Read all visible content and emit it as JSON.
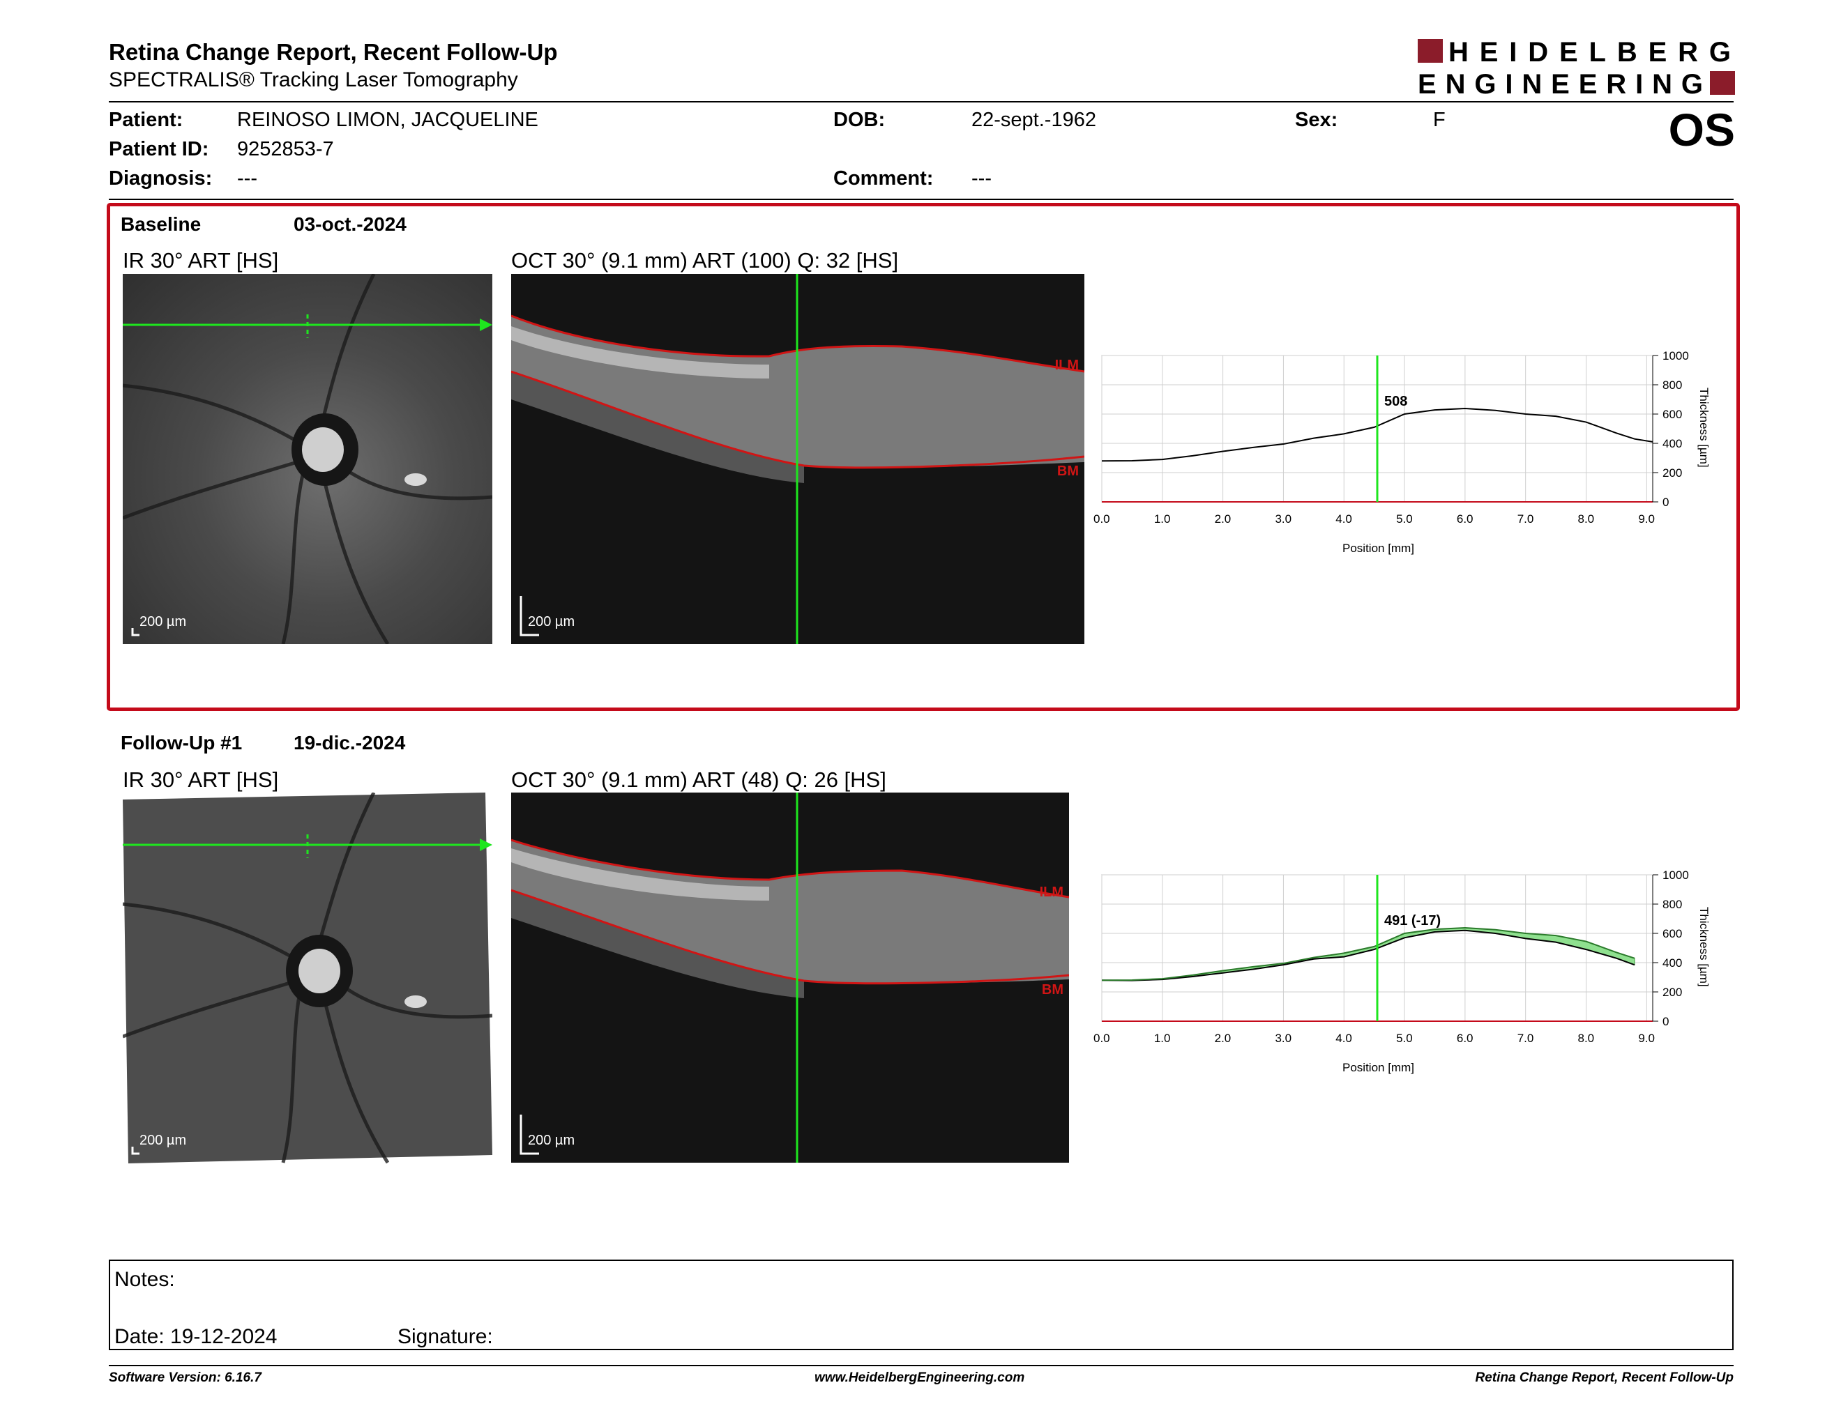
{
  "header": {
    "title": "Retina Change Report, Recent Follow-Up",
    "subtitle": "SPECTRALIS® Tracking Laser Tomography",
    "logo_text": "HEIDELBERG ENGINEERING",
    "eye": "OS"
  },
  "patient": {
    "patient_label": "Patient:",
    "patient_name": "REINOSO LIMON, JACQUELINE",
    "id_label": "Patient ID:",
    "id_value": "9252853-7",
    "diagnosis_label": "Diagnosis:",
    "diagnosis_value": "---",
    "dob_label": "DOB:",
    "dob_value": "22-sept.-1962",
    "comment_label": "Comment:",
    "comment_value": "---",
    "sex_label": "Sex:",
    "sex_value": "F"
  },
  "baseline": {
    "label": "Baseline",
    "date": "03-oct.-2024",
    "ir_label": "IR 30° ART [HS]",
    "oct_label": "OCT 30° (9.1 mm) ART (100) Q: 32 [HS]",
    "ir_scale": "200 µm",
    "oct_scale": "200 µm",
    "ilm": "ILM",
    "bm": "BM"
  },
  "followup": {
    "label": "Follow-Up #1",
    "date": "19-dic.-2024",
    "ir_label": "IR 30° ART [HS]",
    "oct_label": "OCT 30° (9.1 mm) ART (48) Q: 26 [HS]",
    "ir_scale": "200 µm",
    "oct_scale": "200 µm",
    "ilm": "ILM",
    "bm": "BM"
  },
  "chart_data": [
    {
      "type": "line",
      "xlabel": "Position [mm]",
      "ylabel": "Thickness [µm]",
      "xlim": [
        0,
        9.1
      ],
      "ylim": [
        0,
        1000
      ],
      "x_ticks": [
        "0.0",
        "1.0",
        "2.0",
        "3.0",
        "4.0",
        "5.0",
        "6.0",
        "7.0",
        "8.0",
        "9.0"
      ],
      "y_ticks": [
        "0",
        "200",
        "400",
        "600",
        "800",
        "1000"
      ],
      "grid": true,
      "cursor_x": 4.55,
      "cursor_label": "508",
      "series": [
        {
          "x": [
            0,
            0.5,
            1.0,
            1.5,
            2.0,
            2.5,
            3.0,
            3.5,
            4.0,
            4.5,
            5.0,
            5.5,
            6.0,
            6.5,
            7.0,
            7.5,
            8.0,
            8.5,
            8.8,
            9.1
          ],
          "y": [
            280,
            281,
            290,
            315,
            345,
            372,
            395,
            435,
            465,
            510,
            600,
            628,
            638,
            625,
            600,
            585,
            545,
            470,
            430,
            410
          ]
        }
      ]
    },
    {
      "type": "line",
      "xlabel": "Position [mm]",
      "ylabel": "Thickness [µm]",
      "xlim": [
        0,
        9.1
      ],
      "ylim": [
        0,
        1000
      ],
      "x_ticks": [
        "0.0",
        "1.0",
        "2.0",
        "3.0",
        "4.0",
        "5.0",
        "6.0",
        "7.0",
        "8.0",
        "9.0"
      ],
      "y_ticks": [
        "0",
        "200",
        "400",
        "600",
        "800",
        "1000"
      ],
      "grid": true,
      "cursor_x": 4.55,
      "cursor_label": "491 (-17)",
      "series": [
        {
          "x": [
            0,
            0.5,
            1.0,
            1.5,
            2.0,
            2.5,
            3.0,
            3.5,
            4.0,
            4.5,
            5.0,
            5.5,
            6.0,
            6.5,
            7.0,
            7.5,
            8.0,
            8.5,
            8.8
          ],
          "y": [
            280,
            278,
            285,
            305,
            330,
            355,
            385,
            425,
            440,
            490,
            570,
            610,
            620,
            600,
            565,
            540,
            490,
            430,
            385
          ]
        },
        {
          "x": [
            0,
            0.5,
            1.0,
            1.5,
            2.0,
            2.5,
            3.0,
            3.5,
            4.0,
            4.5,
            5.0,
            5.5,
            6.0,
            6.5,
            7.0,
            7.5,
            8.0,
            8.5,
            8.8
          ],
          "y": [
            280,
            281,
            290,
            315,
            345,
            372,
            395,
            435,
            465,
            510,
            600,
            628,
            638,
            625,
            600,
            585,
            545,
            470,
            430
          ]
        }
      ],
      "fill_between": true,
      "fill_color": "#8fe08f"
    }
  ],
  "notes": {
    "notes_label": "Notes:",
    "date_label": "Date: 19-12-2024",
    "signature_label": "Signature:"
  },
  "footer": {
    "left": "Software Version: 6.16.7",
    "center": "www.HeidelbergEngineering.com",
    "right": "Retina Change Report, Recent Follow-Up"
  },
  "colors": {
    "accent_red": "#c40a1a",
    "logo_red": "#8b1c2a",
    "cursor_green": "#1ee61e",
    "ilm_red": "#d01515"
  }
}
